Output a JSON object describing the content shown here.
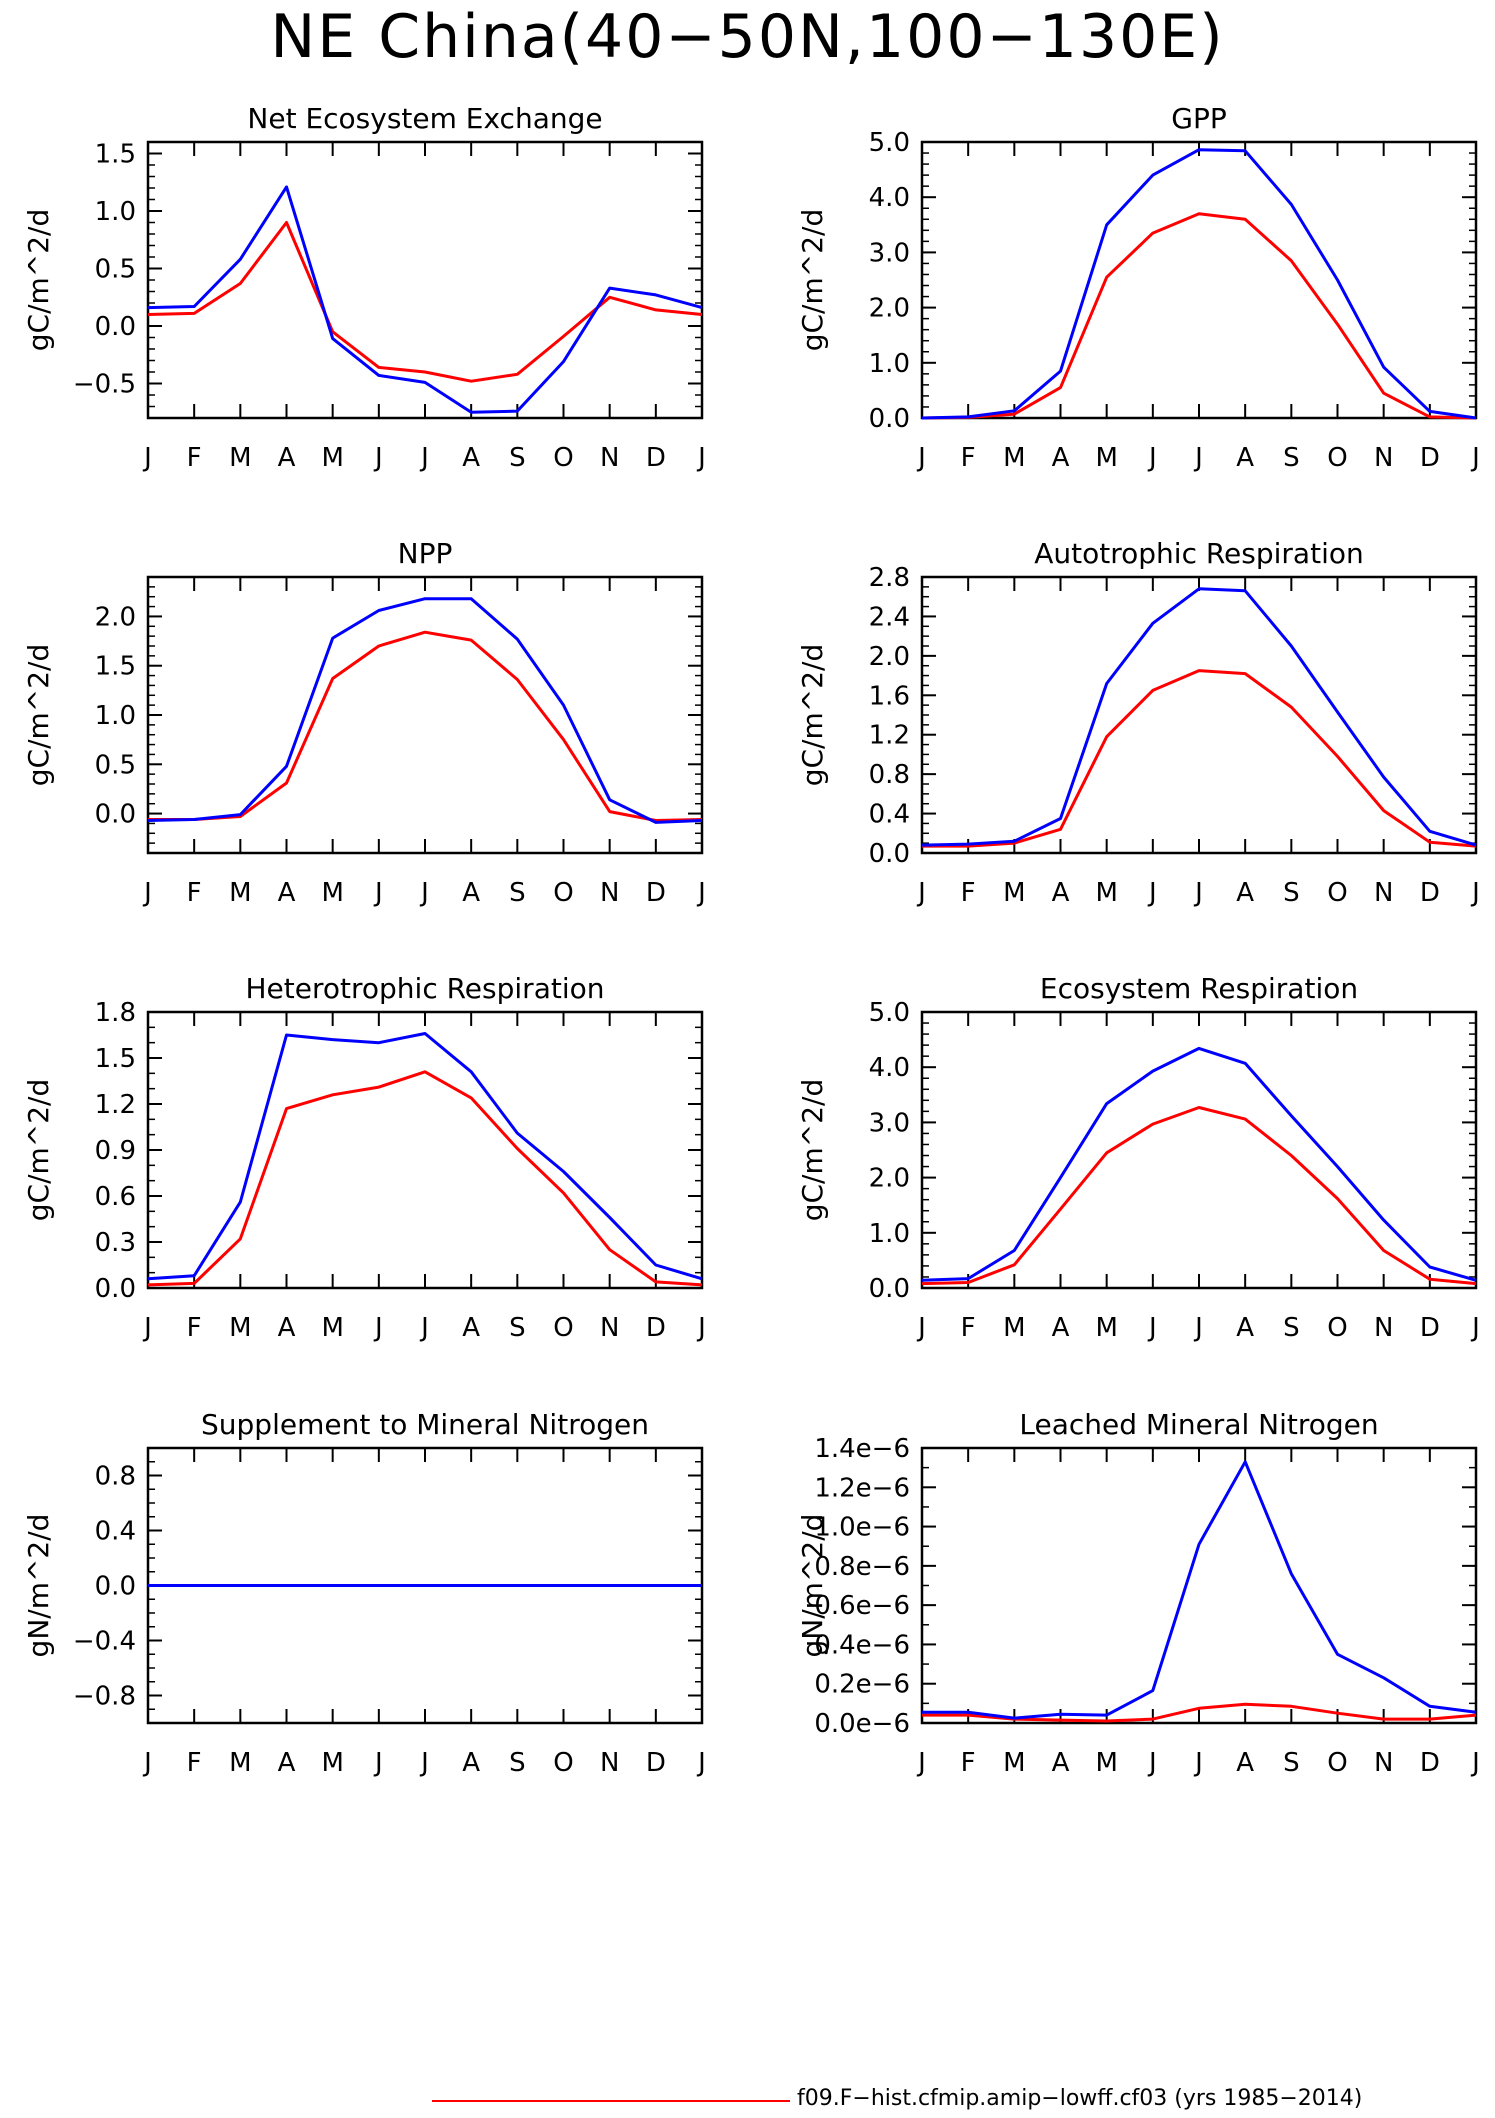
{
  "title": "NE China(40−50N,100−130E)",
  "legend": {
    "label": "f09.F−hist.cfmip.amip−lowff.cf03 (yrs 1985−2014)",
    "color": "#ff0000"
  },
  "colors": {
    "red_series": "#ff0000",
    "blue_series": "#0000ff"
  },
  "months": [
    "J",
    "F",
    "M",
    "A",
    "M",
    "J",
    "J",
    "A",
    "S",
    "O",
    "N",
    "D",
    "J"
  ],
  "chart_data": [
    {
      "type": "line",
      "title": "Net Ecosystem Exchange",
      "ylabel": "gC/m^2/d",
      "ylim": [
        -0.8,
        1.6
      ],
      "yticks": [
        -0.5,
        0.0,
        0.5,
        1.0,
        1.5
      ],
      "ytick_labels": [
        "−0.5",
        "0.0",
        "0.5",
        "1.0",
        "1.5"
      ],
      "minor_step": 0.1,
      "categories": [
        "J",
        "F",
        "M",
        "A",
        "M",
        "J",
        "J",
        "A",
        "S",
        "O",
        "N",
        "D",
        "J"
      ],
      "series": [
        {
          "color": "#ff0000",
          "values": [
            0.1,
            0.11,
            0.37,
            0.9,
            -0.05,
            -0.36,
            -0.4,
            -0.48,
            -0.42,
            -0.09,
            0.25,
            0.14,
            0.1
          ]
        },
        {
          "color": "#0000ff",
          "values": [
            0.16,
            0.17,
            0.58,
            1.21,
            -0.11,
            -0.43,
            -0.49,
            -0.75,
            -0.74,
            -0.31,
            0.33,
            0.27,
            0.16
          ]
        }
      ]
    },
    {
      "type": "line",
      "title": "GPP",
      "ylabel": "gC/m^2/d",
      "ylim": [
        0,
        5
      ],
      "yticks": [
        0,
        1,
        2,
        3,
        4,
        5
      ],
      "ytick_labels": [
        "0.0",
        "1.0",
        "2.0",
        "3.0",
        "4.0",
        "5.0"
      ],
      "minor_step": 0.2,
      "categories": [
        "J",
        "F",
        "M",
        "A",
        "M",
        "J",
        "J",
        "A",
        "S",
        "O",
        "N",
        "D",
        "J"
      ],
      "series": [
        {
          "color": "#ff0000",
          "values": [
            0.0,
            0.01,
            0.07,
            0.55,
            2.55,
            3.35,
            3.7,
            3.6,
            2.85,
            1.7,
            0.45,
            0.02,
            0.0
          ]
        },
        {
          "color": "#0000ff",
          "values": [
            0.0,
            0.02,
            0.13,
            0.85,
            3.5,
            4.4,
            4.86,
            4.84,
            3.87,
            2.5,
            0.92,
            0.12,
            0.0
          ]
        }
      ]
    },
    {
      "type": "line",
      "title": "NPP",
      "ylabel": "gC/m^2/d",
      "ylim": [
        -0.4,
        2.4
      ],
      "yticks": [
        0.0,
        0.5,
        1.0,
        1.5,
        2.0
      ],
      "ytick_labels": [
        "0.0",
        "0.5",
        "1.0",
        "1.5",
        "2.0"
      ],
      "minor_step": 0.1,
      "categories": [
        "J",
        "F",
        "M",
        "A",
        "M",
        "J",
        "J",
        "A",
        "S",
        "O",
        "N",
        "D",
        "J"
      ],
      "series": [
        {
          "color": "#ff0000",
          "values": [
            -0.06,
            -0.06,
            -0.03,
            0.31,
            1.37,
            1.7,
            1.84,
            1.76,
            1.36,
            0.75,
            0.02,
            -0.07,
            -0.06
          ]
        },
        {
          "color": "#0000ff",
          "values": [
            -0.07,
            -0.06,
            -0.01,
            0.48,
            1.78,
            2.06,
            2.18,
            2.18,
            1.77,
            1.1,
            0.14,
            -0.09,
            -0.07
          ]
        }
      ]
    },
    {
      "type": "line",
      "title": "Autotrophic Respiration",
      "ylabel": "gC/m^2/d",
      "ylim": [
        0,
        2.8
      ],
      "yticks": [
        0,
        0.4,
        0.8,
        1.2,
        1.6,
        2.0,
        2.4,
        2.8
      ],
      "ytick_labels": [
        "0.0",
        "0.4",
        "0.8",
        "1.2",
        "1.6",
        "2.0",
        "2.4",
        "2.8"
      ],
      "minor_step": 0.1,
      "categories": [
        "J",
        "F",
        "M",
        "A",
        "M",
        "J",
        "J",
        "A",
        "S",
        "O",
        "N",
        "D",
        "J"
      ],
      "series": [
        {
          "color": "#ff0000",
          "values": [
            0.07,
            0.07,
            0.1,
            0.24,
            1.18,
            1.65,
            1.85,
            1.82,
            1.48,
            0.98,
            0.43,
            0.11,
            0.07
          ]
        },
        {
          "color": "#0000ff",
          "values": [
            0.08,
            0.09,
            0.12,
            0.35,
            1.72,
            2.33,
            2.68,
            2.66,
            2.1,
            1.43,
            0.77,
            0.22,
            0.08
          ]
        }
      ]
    },
    {
      "type": "line",
      "title": "Heterotrophic Respiration",
      "ylabel": "gC/m^2/d",
      "ylim": [
        0,
        1.8
      ],
      "yticks": [
        0,
        0.3,
        0.6,
        0.9,
        1.2,
        1.5,
        1.8
      ],
      "ytick_labels": [
        "0.0",
        "0.3",
        "0.6",
        "0.9",
        "1.2",
        "1.5",
        "1.8"
      ],
      "minor_step": 0.1,
      "categories": [
        "J",
        "F",
        "M",
        "A",
        "M",
        "J",
        "J",
        "A",
        "S",
        "O",
        "N",
        "D",
        "J"
      ],
      "series": [
        {
          "color": "#ff0000",
          "values": [
            0.02,
            0.03,
            0.32,
            1.17,
            1.26,
            1.31,
            1.41,
            1.24,
            0.91,
            0.62,
            0.25,
            0.04,
            0.02
          ]
        },
        {
          "color": "#0000ff",
          "values": [
            0.06,
            0.08,
            0.56,
            1.65,
            1.62,
            1.6,
            1.66,
            1.41,
            1.01,
            0.76,
            0.46,
            0.15,
            0.06
          ]
        }
      ]
    },
    {
      "type": "line",
      "title": "Ecosystem Respiration",
      "ylabel": "gC/m^2/d",
      "ylim": [
        0,
        5
      ],
      "yticks": [
        0,
        1,
        2,
        3,
        4,
        5
      ],
      "ytick_labels": [
        "0.0",
        "1.0",
        "2.0",
        "3.0",
        "4.0",
        "5.0"
      ],
      "minor_step": 0.2,
      "categories": [
        "J",
        "F",
        "M",
        "A",
        "M",
        "J",
        "J",
        "A",
        "S",
        "O",
        "N",
        "D",
        "J"
      ],
      "series": [
        {
          "color": "#ff0000",
          "values": [
            0.08,
            0.1,
            0.42,
            1.43,
            2.45,
            2.97,
            3.27,
            3.06,
            2.4,
            1.62,
            0.68,
            0.16,
            0.08
          ]
        },
        {
          "color": "#0000ff",
          "values": [
            0.14,
            0.17,
            0.68,
            2.0,
            3.34,
            3.93,
            4.34,
            4.07,
            3.12,
            2.2,
            1.23,
            0.38,
            0.14
          ]
        }
      ]
    },
    {
      "type": "line",
      "title": "Supplement to Mineral Nitrogen",
      "ylabel": "gN/m^2/d",
      "ylim": [
        -1.0,
        1.0
      ],
      "yticks": [
        -0.8,
        -0.4,
        0.0,
        0.4,
        0.8
      ],
      "ytick_labels": [
        "−0.8",
        "−0.4",
        "0.0",
        "0.4",
        "0.8"
      ],
      "minor_step": 0.1,
      "categories": [
        "J",
        "F",
        "M",
        "A",
        "M",
        "J",
        "J",
        "A",
        "S",
        "O",
        "N",
        "D",
        "J"
      ],
      "series": [
        {
          "color": "#ff0000",
          "values": [
            0,
            0,
            0,
            0,
            0,
            0,
            0,
            0,
            0,
            0,
            0,
            0,
            0
          ]
        },
        {
          "color": "#0000ff",
          "values": [
            0,
            0,
            0,
            0,
            0,
            0,
            0,
            0,
            0,
            0,
            0,
            0,
            0
          ]
        }
      ]
    },
    {
      "type": "line",
      "title": "Leached Mineral Nitrogen",
      "ylabel": "gN/m^2/d",
      "ylim": [
        0,
        1.4e-06
      ],
      "yticks": [
        0,
        2e-07,
        4e-07,
        6e-07,
        8e-07,
        1e-06,
        1.2e-06,
        1.4e-06
      ],
      "ytick_labels": [
        "0.0e−6",
        "0.2e−6",
        "0.4e−6",
        "0.6e−6",
        "0.8e−6",
        "1.0e−6",
        "1.2e−6",
        "1.4e−6"
      ],
      "minor_step": 1e-07,
      "categories": [
        "J",
        "F",
        "M",
        "A",
        "M",
        "J",
        "J",
        "A",
        "S",
        "O",
        "N",
        "D",
        "J"
      ],
      "series": [
        {
          "color": "#ff0000",
          "values": [
            4e-08,
            4e-08,
            2e-08,
            1.5e-08,
            1e-08,
            2e-08,
            7.5e-08,
            9.5e-08,
            8.5e-08,
            5e-08,
            2e-08,
            2e-08,
            4e-08
          ]
        },
        {
          "color": "#0000ff",
          "values": [
            5.5e-08,
            5.5e-08,
            2.5e-08,
            4.5e-08,
            4e-08,
            1.65e-07,
            9.1e-07,
            1.33e-06,
            7.6e-07,
            3.5e-07,
            2.3e-07,
            8.5e-08,
            5.5e-08
          ]
        }
      ]
    }
  ]
}
